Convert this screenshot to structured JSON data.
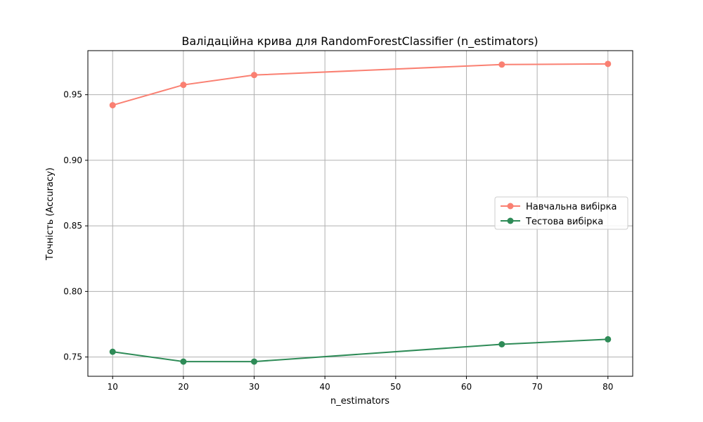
{
  "chart_data": {
    "type": "line",
    "title": "Валідаційна крива для RandomForestClassifier (n_estimators)",
    "xlabel": "n_estimators",
    "ylabel": "Точність (Accuracy)",
    "xlim": [
      6.5,
      83.5
    ],
    "ylim": [
      0.7353,
      0.9836
    ],
    "xticks": [
      10,
      20,
      30,
      40,
      50,
      60,
      70,
      80
    ],
    "yticks": [
      0.75,
      0.8,
      0.85,
      0.9,
      0.95
    ],
    "xtick_labels": [
      "10",
      "20",
      "30",
      "40",
      "50",
      "60",
      "70",
      "80"
    ],
    "ytick_labels": [
      "0.75",
      "0.80",
      "0.85",
      "0.90",
      "0.95"
    ],
    "grid": true,
    "legend_position": "center-right",
    "x": [
      10,
      20,
      30,
      65,
      80
    ],
    "series": [
      {
        "name": "Навчальна вибірка",
        "color": "#fa8072",
        "values": [
          0.942,
          0.9575,
          0.965,
          0.973,
          0.9735
        ]
      },
      {
        "name": "Тестова вибірка",
        "color": "#2e8b57",
        "values": [
          0.754,
          0.7465,
          0.7465,
          0.7597,
          0.7635
        ]
      }
    ]
  }
}
